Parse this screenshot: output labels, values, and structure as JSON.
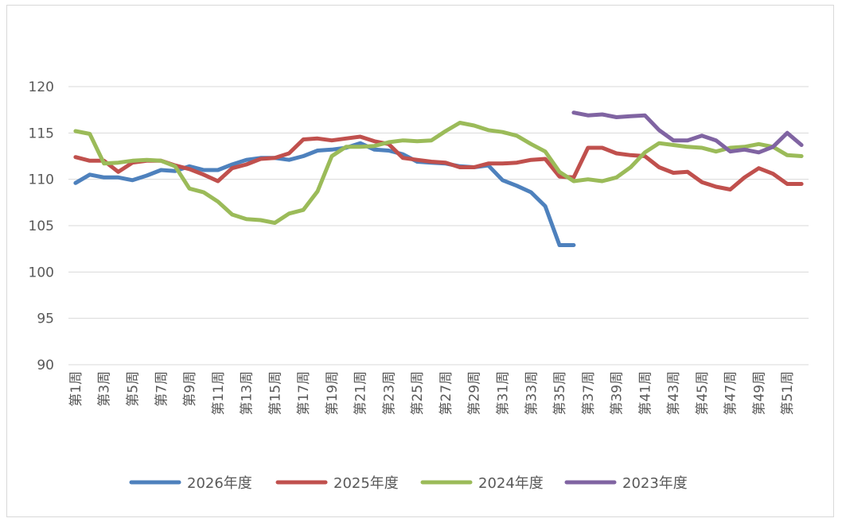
{
  "chart_data": {
    "type": "line",
    "title": "",
    "xlabel": "",
    "ylabel": "",
    "ylim": [
      90,
      120
    ],
    "yticks": [
      90,
      95,
      100,
      105,
      110,
      115,
      120
    ],
    "grid": true,
    "legend_position": "bottom",
    "categories": [
      "第1周",
      "第2周",
      "第3周",
      "第4周",
      "第5周",
      "第6周",
      "第7周",
      "第8周",
      "第9周",
      "第10周",
      "第11周",
      "第12周",
      "第13周",
      "第14周",
      "第15周",
      "第16周",
      "第17周",
      "第18周",
      "第19周",
      "第20周",
      "第21周",
      "第22周",
      "第23周",
      "第24周",
      "第25周",
      "第26周",
      "第27周",
      "第28周",
      "第29周",
      "第30周",
      "第31周",
      "第32周",
      "第33周",
      "第34周",
      "第35周",
      "第36周",
      "第37周",
      "第38周",
      "第39周",
      "第40周",
      "第41周",
      "第42周",
      "第43周",
      "第44周",
      "第45周",
      "第46周",
      "第47周",
      "第48周",
      "第49周",
      "第50周",
      "第51周",
      "第52周"
    ],
    "xtick_labels": [
      "第1周",
      "",
      "第3周",
      "",
      "第5周",
      "",
      "第7周",
      "",
      "第9周",
      "",
      "第11周",
      "",
      "第13周",
      "",
      "第15周",
      "",
      "第17周",
      "",
      "第19周",
      "",
      "第21周",
      "",
      "第23周",
      "",
      "第25周",
      "",
      "第27周",
      "",
      "第29周",
      "",
      "第31周",
      "",
      "第33周",
      "",
      "第35周",
      "",
      "第37周",
      "",
      "第39周",
      "",
      "第41周",
      "",
      "第43周",
      "",
      "第45周",
      "",
      "第47周",
      "",
      "第49周",
      "",
      "第51周",
      ""
    ],
    "series": [
      {
        "name": "2026年度",
        "color": "#4e81bd",
        "values": [
          109.6,
          110.5,
          110.2,
          110.2,
          109.9,
          110.4,
          111.0,
          110.9,
          111.4,
          111.0,
          111.0,
          111.6,
          112.1,
          112.3,
          112.3,
          112.1,
          112.5,
          113.1,
          113.2,
          113.4,
          113.9,
          113.2,
          113.1,
          112.7,
          111.9,
          111.8,
          111.7,
          111.4,
          111.3,
          111.5,
          109.9,
          109.3,
          108.6,
          107.1,
          102.9,
          102.9,
          null,
          null,
          null,
          null,
          null,
          null,
          null,
          null,
          null,
          null,
          null,
          null,
          null,
          null,
          null,
          null
        ]
      },
      {
        "name": "2025年度",
        "color": "#c0504d",
        "values": [
          112.4,
          112.0,
          112.0,
          110.8,
          111.8,
          112.0,
          112.0,
          111.5,
          111.1,
          110.5,
          109.8,
          111.2,
          111.6,
          112.2,
          112.3,
          112.8,
          114.3,
          114.4,
          114.2,
          114.4,
          114.6,
          114.1,
          113.8,
          112.3,
          112.1,
          111.9,
          111.8,
          111.3,
          111.3,
          111.7,
          111.7,
          111.8,
          112.1,
          112.2,
          110.3,
          110.2,
          113.4,
          113.4,
          112.8,
          112.6,
          112.5,
          111.3,
          110.7,
          110.8,
          109.7,
          109.2,
          108.9,
          110.2,
          111.2,
          110.6,
          109.5,
          109.5
        ]
      },
      {
        "name": "2024年度",
        "color": "#9bbb59",
        "values": [
          115.2,
          114.9,
          111.7,
          111.8,
          112.0,
          112.1,
          112.0,
          111.4,
          109.0,
          108.6,
          107.6,
          106.2,
          105.7,
          105.6,
          105.3,
          106.3,
          106.7,
          108.7,
          112.5,
          113.5,
          113.5,
          113.6,
          114.0,
          114.2,
          114.1,
          114.2,
          115.2,
          116.1,
          115.8,
          115.3,
          115.1,
          114.7,
          113.8,
          113.0,
          110.8,
          109.8,
          110.0,
          109.8,
          110.2,
          111.3,
          112.9,
          113.9,
          113.7,
          113.5,
          113.4,
          113.0,
          113.4,
          113.5,
          113.8,
          113.5,
          112.6,
          112.5
        ]
      },
      {
        "name": "2023年度",
        "color": "#8064a2",
        "values": [
          null,
          null,
          null,
          null,
          null,
          null,
          null,
          null,
          null,
          null,
          null,
          null,
          null,
          null,
          null,
          null,
          null,
          null,
          null,
          null,
          null,
          null,
          null,
          null,
          null,
          null,
          null,
          null,
          null,
          null,
          null,
          null,
          null,
          null,
          null,
          117.2,
          116.9,
          117.0,
          116.7,
          116.8,
          116.9,
          115.3,
          114.2,
          114.2,
          114.7,
          114.2,
          113.0,
          113.2,
          112.9,
          113.5,
          115.0,
          113.7
        ]
      }
    ]
  }
}
